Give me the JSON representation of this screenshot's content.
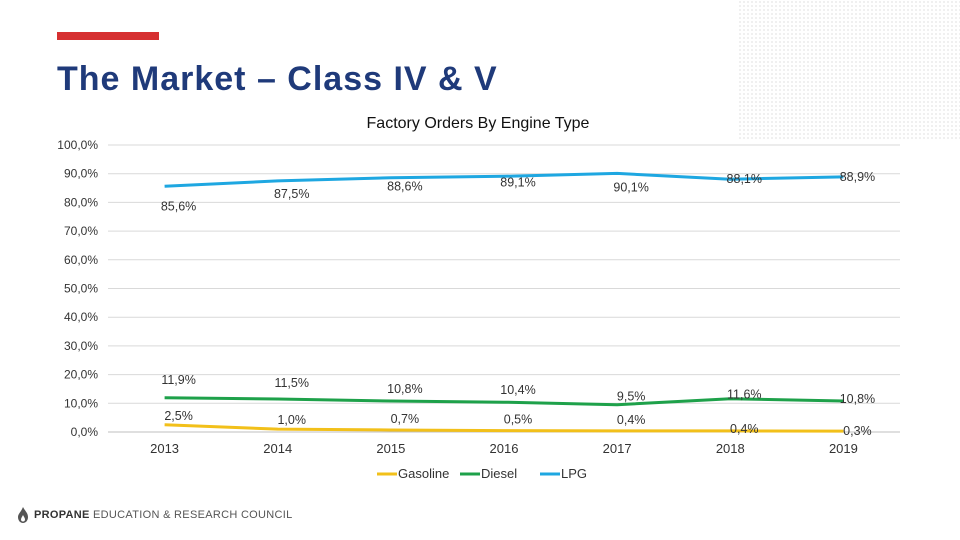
{
  "slide": {
    "title": "The Market – Class IV & V",
    "accent_color": "#d63031",
    "title_color": "#1f3a7a"
  },
  "footer": {
    "org_bold": "PROPANE",
    "org_rest": "EDUCATION & RESEARCH COUNCIL",
    "logo_icon": "flame-icon"
  },
  "chart_data": {
    "type": "line",
    "title": "Factory Orders By Engine Type",
    "categories": [
      "2013",
      "2014",
      "2015",
      "2016",
      "2017",
      "2018",
      "2019"
    ],
    "ylim": [
      0,
      100
    ],
    "yticks": [
      0,
      10,
      20,
      30,
      40,
      50,
      60,
      70,
      80,
      90,
      100
    ],
    "ytick_labels": [
      "0,0%",
      "10,0%",
      "20,0%",
      "30,0%",
      "40,0%",
      "50,0%",
      "60,0%",
      "70,0%",
      "80,0%",
      "90,0%",
      "100,0%"
    ],
    "grid": true,
    "legend_position": "bottom",
    "series": [
      {
        "name": "Gasoline",
        "color": "#f2c01a",
        "values": [
          2.5,
          1.0,
          0.7,
          0.5,
          0.4,
          0.4,
          0.3
        ],
        "labels": [
          "2,5%",
          "1,0%",
          "0,7%",
          "0,5%",
          "0,4%",
          "0,4%",
          "0,3%"
        ]
      },
      {
        "name": "Diesel",
        "color": "#1ea14a",
        "values": [
          11.9,
          11.5,
          10.8,
          10.4,
          9.5,
          11.6,
          10.8
        ],
        "labels": [
          "11,9%",
          "11,5%",
          "10,8%",
          "10,4%",
          "9,5%",
          "11,6%",
          "10,8%"
        ]
      },
      {
        "name": "LPG",
        "color": "#1ea7e1",
        "values": [
          85.6,
          87.5,
          88.6,
          89.1,
          90.1,
          88.1,
          88.9
        ],
        "labels": [
          "85,6%",
          "87,5%",
          "88,6%",
          "89,1%",
          "90,1%",
          "88,1%",
          "88,9%"
        ]
      }
    ]
  }
}
